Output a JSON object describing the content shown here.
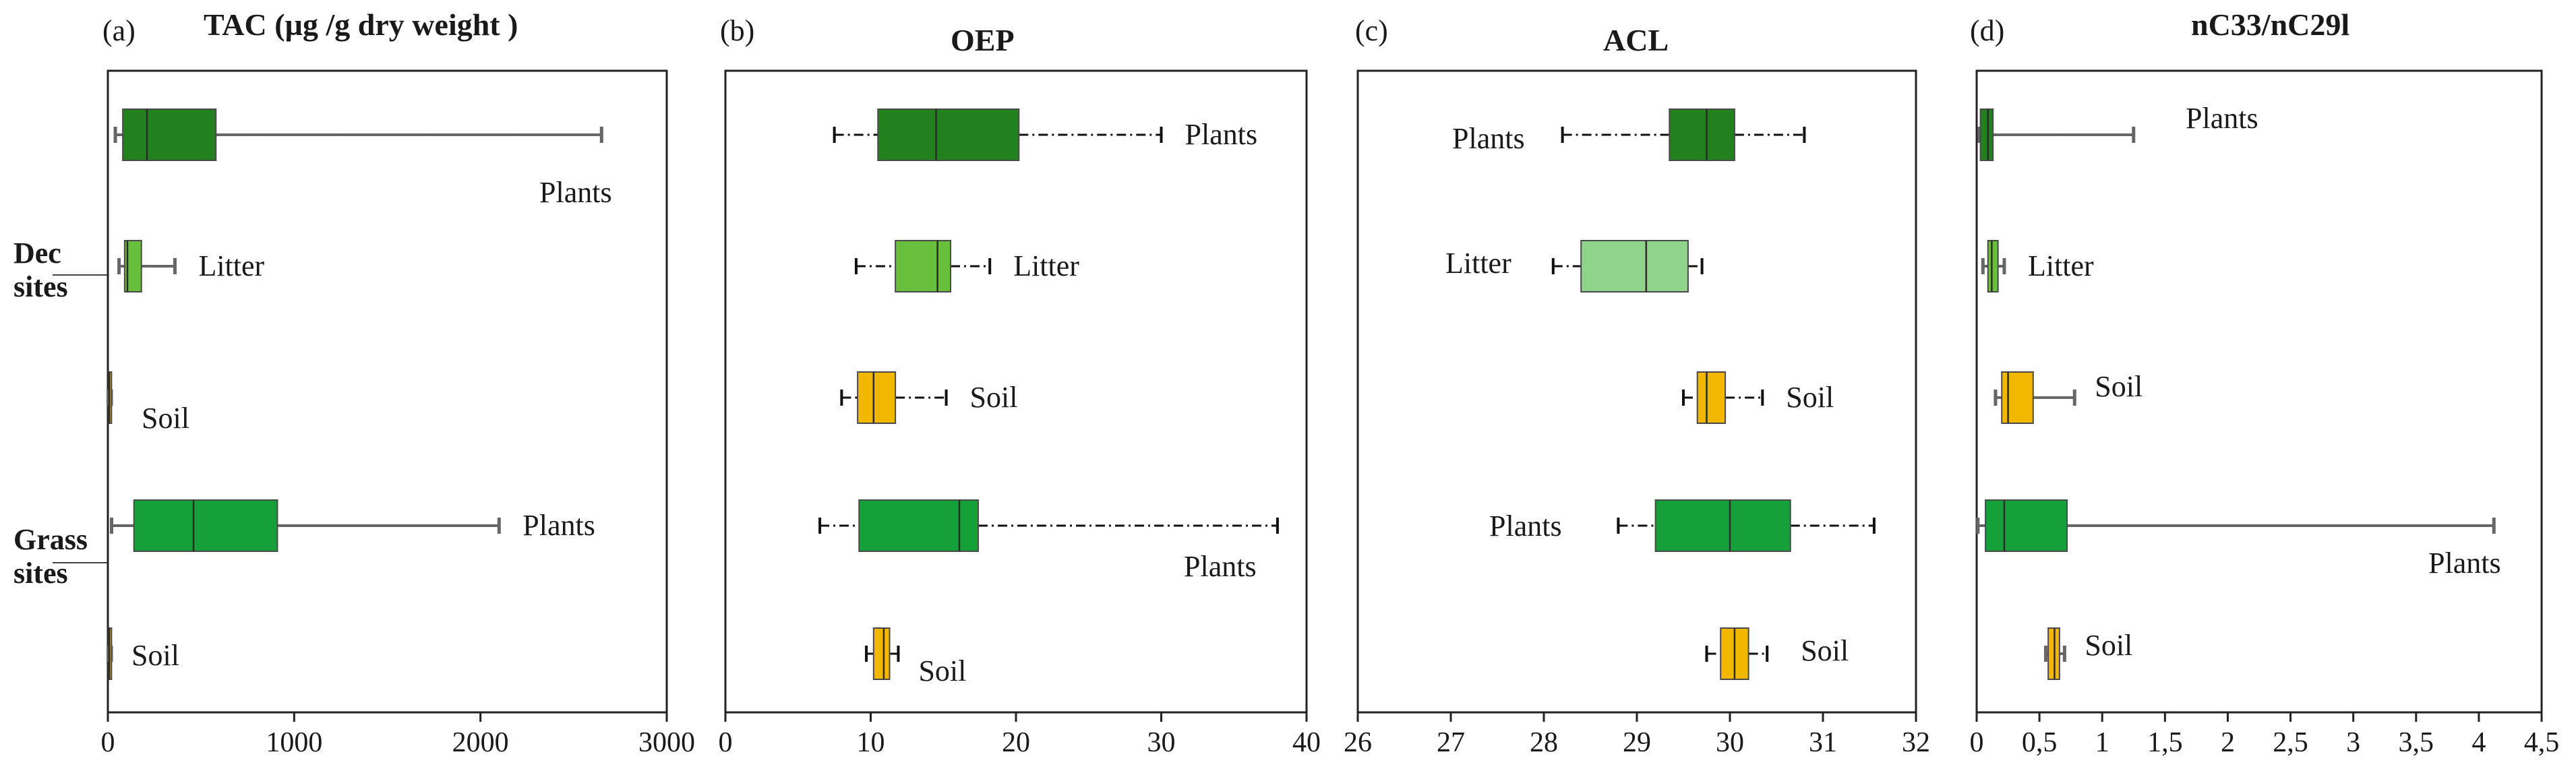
{
  "chart_data": [
    {
      "type": "boxplot",
      "panel_label": "(a)",
      "title": "TAC (µg /g dry  weight )",
      "xlim": [
        0,
        3000
      ],
      "xticks": [
        0,
        1000,
        2000,
        3000
      ],
      "xtick_labels": [
        "0",
        "1000",
        "2000",
        "3000"
      ],
      "boxes": [
        {
          "label": "Plants",
          "min": 40,
          "q1": 80,
          "median": 210,
          "q3": 580,
          "max": 2650,
          "color": "#23801f",
          "label_pos": "below-right"
        },
        {
          "label": "Litter",
          "min": 60,
          "q1": 90,
          "median": 105,
          "q3": 180,
          "max": 360,
          "color": "#68bf3c",
          "label_pos": "right"
        },
        {
          "label": "Soil",
          "min": 2,
          "q1": 5,
          "median": 8,
          "q3": 12,
          "max": 18,
          "color": "#f2b800",
          "label_pos": "below-right"
        },
        {
          "label": "Plants",
          "min": 20,
          "q1": 140,
          "median": 460,
          "q3": 910,
          "max": 2100,
          "color": "#16a03a",
          "label_pos": "right"
        },
        {
          "label": "Soil",
          "min": 2,
          "q1": 5,
          "median": 8,
          "q3": 12,
          "max": 18,
          "color": "#f2b800",
          "label_pos": "right"
        }
      ]
    },
    {
      "type": "boxplot",
      "panel_label": "(b)",
      "title": "OEP",
      "xlim": [
        0,
        40
      ],
      "xticks": [
        0,
        10,
        20,
        30,
        40
      ],
      "xtick_labels": [
        "0",
        "10",
        "20",
        "30",
        "40"
      ],
      "boxes": [
        {
          "label": "Plants",
          "min": 7.5,
          "q1": 10.5,
          "median": 14.5,
          "q3": 20.2,
          "max": 30.0,
          "color": "#23801f",
          "label_pos": "right"
        },
        {
          "label": "Litter",
          "min": 9.0,
          "q1": 11.7,
          "median": 14.6,
          "q3": 15.5,
          "max": 18.2,
          "color": "#68bf3c",
          "label_pos": "right"
        },
        {
          "label": "Soil",
          "min": 8.0,
          "q1": 9.1,
          "median": 10.2,
          "q3": 11.7,
          "max": 15.2,
          "color": "#f2b800",
          "label_pos": "right"
        },
        {
          "label": "Plants",
          "min": 6.5,
          "q1": 9.2,
          "median": 16.1,
          "q3": 17.4,
          "max": 38.0,
          "color": "#16a03a",
          "label_pos": "below-right"
        },
        {
          "label": "Soil",
          "min": 9.7,
          "q1": 10.2,
          "median": 10.9,
          "q3": 11.3,
          "max": 11.9,
          "color": "#f2b800",
          "label_pos": "below-right"
        }
      ]
    },
    {
      "type": "boxplot",
      "panel_label": "(c)",
      "title": "ACL",
      "xlim": [
        26,
        32
      ],
      "xticks": [
        26,
        27,
        28,
        29,
        30,
        31,
        32
      ],
      "xtick_labels": [
        "26",
        "27",
        "28",
        "29",
        "30",
        "31",
        "32"
      ],
      "boxes": [
        {
          "label": "Plants",
          "min": 28.2,
          "q1": 29.35,
          "median": 29.75,
          "q3": 30.05,
          "max": 30.8,
          "color": "#23801f",
          "label_pos": "left"
        },
        {
          "label": "Litter",
          "min": 28.1,
          "q1": 28.4,
          "median": 29.1,
          "q3": 29.55,
          "max": 29.7,
          "color": "#8fd48a",
          "label_pos": "left"
        },
        {
          "label": "Soil",
          "min": 29.5,
          "q1": 29.65,
          "median": 29.75,
          "q3": 29.95,
          "max": 30.35,
          "color": "#f2b800",
          "label_pos": "right"
        },
        {
          "label": "Plants",
          "min": 28.8,
          "q1": 29.2,
          "median": 30.0,
          "q3": 30.65,
          "max": 31.55,
          "color": "#16a03a",
          "label_pos": "left"
        },
        {
          "label": "Soil",
          "min": 29.75,
          "q1": 29.9,
          "median": 30.05,
          "q3": 30.2,
          "max": 30.4,
          "color": "#f2b800",
          "label_pos": "right"
        }
      ]
    },
    {
      "type": "boxplot",
      "panel_label": "(d)",
      "title": "nC33/nC29l",
      "xlim": [
        0,
        4.5
      ],
      "xticks": [
        0,
        0.5,
        1,
        1.5,
        2,
        2.5,
        3,
        3.5,
        4,
        4.5
      ],
      "xtick_labels": [
        "0",
        "0,5",
        "1",
        "1,5",
        "2",
        "2,5",
        "3",
        "3,5",
        "4",
        "4,5"
      ],
      "boxes": [
        {
          "label": "Plants",
          "min": 0.02,
          "q1": 0.03,
          "median": 0.09,
          "q3": 0.13,
          "max": 1.25,
          "color": "#23801f",
          "label_pos": "above-right"
        },
        {
          "label": "Litter",
          "min": 0.05,
          "q1": 0.09,
          "median": 0.12,
          "q3": 0.17,
          "max": 0.22,
          "color": "#68bf3c",
          "label_pos": "right"
        },
        {
          "label": "Soil",
          "min": 0.15,
          "q1": 0.2,
          "median": 0.25,
          "q3": 0.45,
          "max": 0.78,
          "color": "#f2b800",
          "label_pos": "right"
        },
        {
          "label": "Plants",
          "min": 0.01,
          "q1": 0.07,
          "median": 0.22,
          "q3": 0.72,
          "max": 4.12,
          "color": "#16a03a",
          "label_pos": "below-right"
        },
        {
          "label": "Soil",
          "min": 0.55,
          "q1": 0.57,
          "median": 0.62,
          "q3": 0.66,
          "max": 0.7,
          "color": "#f2b800",
          "label_pos": "right"
        }
      ]
    }
  ],
  "row_groups": [
    {
      "line1": "Dec",
      "line2": "sites"
    },
    {
      "line1": "Grass",
      "line2": "sites"
    }
  ]
}
